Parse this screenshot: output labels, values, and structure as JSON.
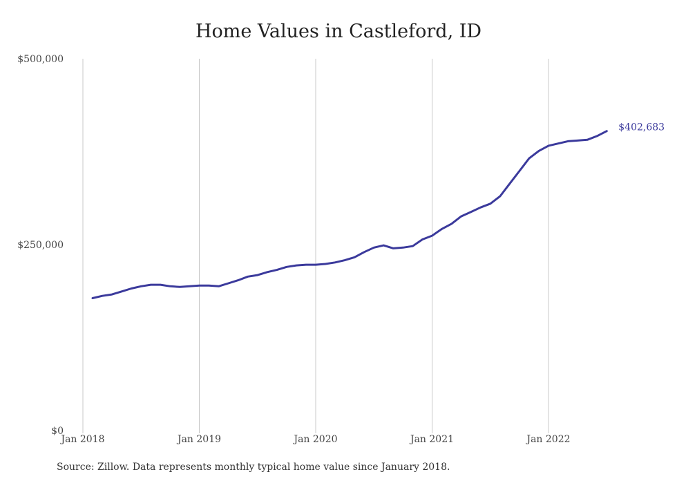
{
  "chart_data": {
    "type": "line",
    "title": "Home Values in Castleford, ID",
    "source": "Source: Zillow. Data represents monthly typical home value since January 2018.",
    "ylim": [
      0,
      500000
    ],
    "y_ticks": [
      {
        "value": 0,
        "label": "$0"
      },
      {
        "value": 250000,
        "label": "$250,000"
      },
      {
        "value": 500000,
        "label": "$500,000"
      }
    ],
    "x_ticks": [
      {
        "date": "2018-01",
        "label": "Jan 2018"
      },
      {
        "date": "2019-01",
        "label": "Jan 2019"
      },
      {
        "date": "2020-01",
        "label": "Jan 2020"
      },
      {
        "date": "2021-01",
        "label": "Jan 2021"
      },
      {
        "date": "2022-01",
        "label": "Jan 2022"
      }
    ],
    "xlim": [
      "2018-01",
      "2022-07"
    ],
    "grid": "vertical",
    "line_color": "#3b3a9c",
    "grid_color": "#c8c8c8",
    "end_label": "$402,683",
    "series": [
      {
        "x": [
          "2018-02",
          "2018-03",
          "2018-04",
          "2018-05",
          "2018-06",
          "2018-07",
          "2018-08",
          "2018-09",
          "2018-10",
          "2018-11",
          "2018-12",
          "2019-01",
          "2019-02",
          "2019-03",
          "2019-04",
          "2019-05",
          "2019-06",
          "2019-07",
          "2019-08",
          "2019-09",
          "2019-10",
          "2019-11",
          "2019-12",
          "2020-01",
          "2020-02",
          "2020-03",
          "2020-04",
          "2020-05",
          "2020-06",
          "2020-07",
          "2020-08",
          "2020-09",
          "2020-10",
          "2020-11",
          "2020-12",
          "2021-01",
          "2021-02",
          "2021-03",
          "2021-04",
          "2021-05",
          "2021-06",
          "2021-07",
          "2021-08",
          "2021-09",
          "2021-10",
          "2021-11",
          "2021-12",
          "2022-01",
          "2022-02",
          "2022-03",
          "2022-04",
          "2022-05",
          "2022-06",
          "2022-07"
        ],
        "values": [
          178000,
          181000,
          183000,
          187000,
          191000,
          194000,
          196000,
          196000,
          194000,
          193000,
          194000,
          195000,
          195000,
          194000,
          198000,
          202000,
          207000,
          209000,
          213000,
          216000,
          220000,
          222000,
          223000,
          223000,
          224000,
          226000,
          229000,
          233000,
          240000,
          246000,
          249000,
          245000,
          246000,
          248000,
          257000,
          262000,
          271000,
          278000,
          288000,
          294000,
          300000,
          305000,
          315000,
          332000,
          349000,
          366000,
          376000,
          383000,
          386000,
          389000,
          390000,
          391000,
          396000,
          402683
        ]
      }
    ]
  }
}
